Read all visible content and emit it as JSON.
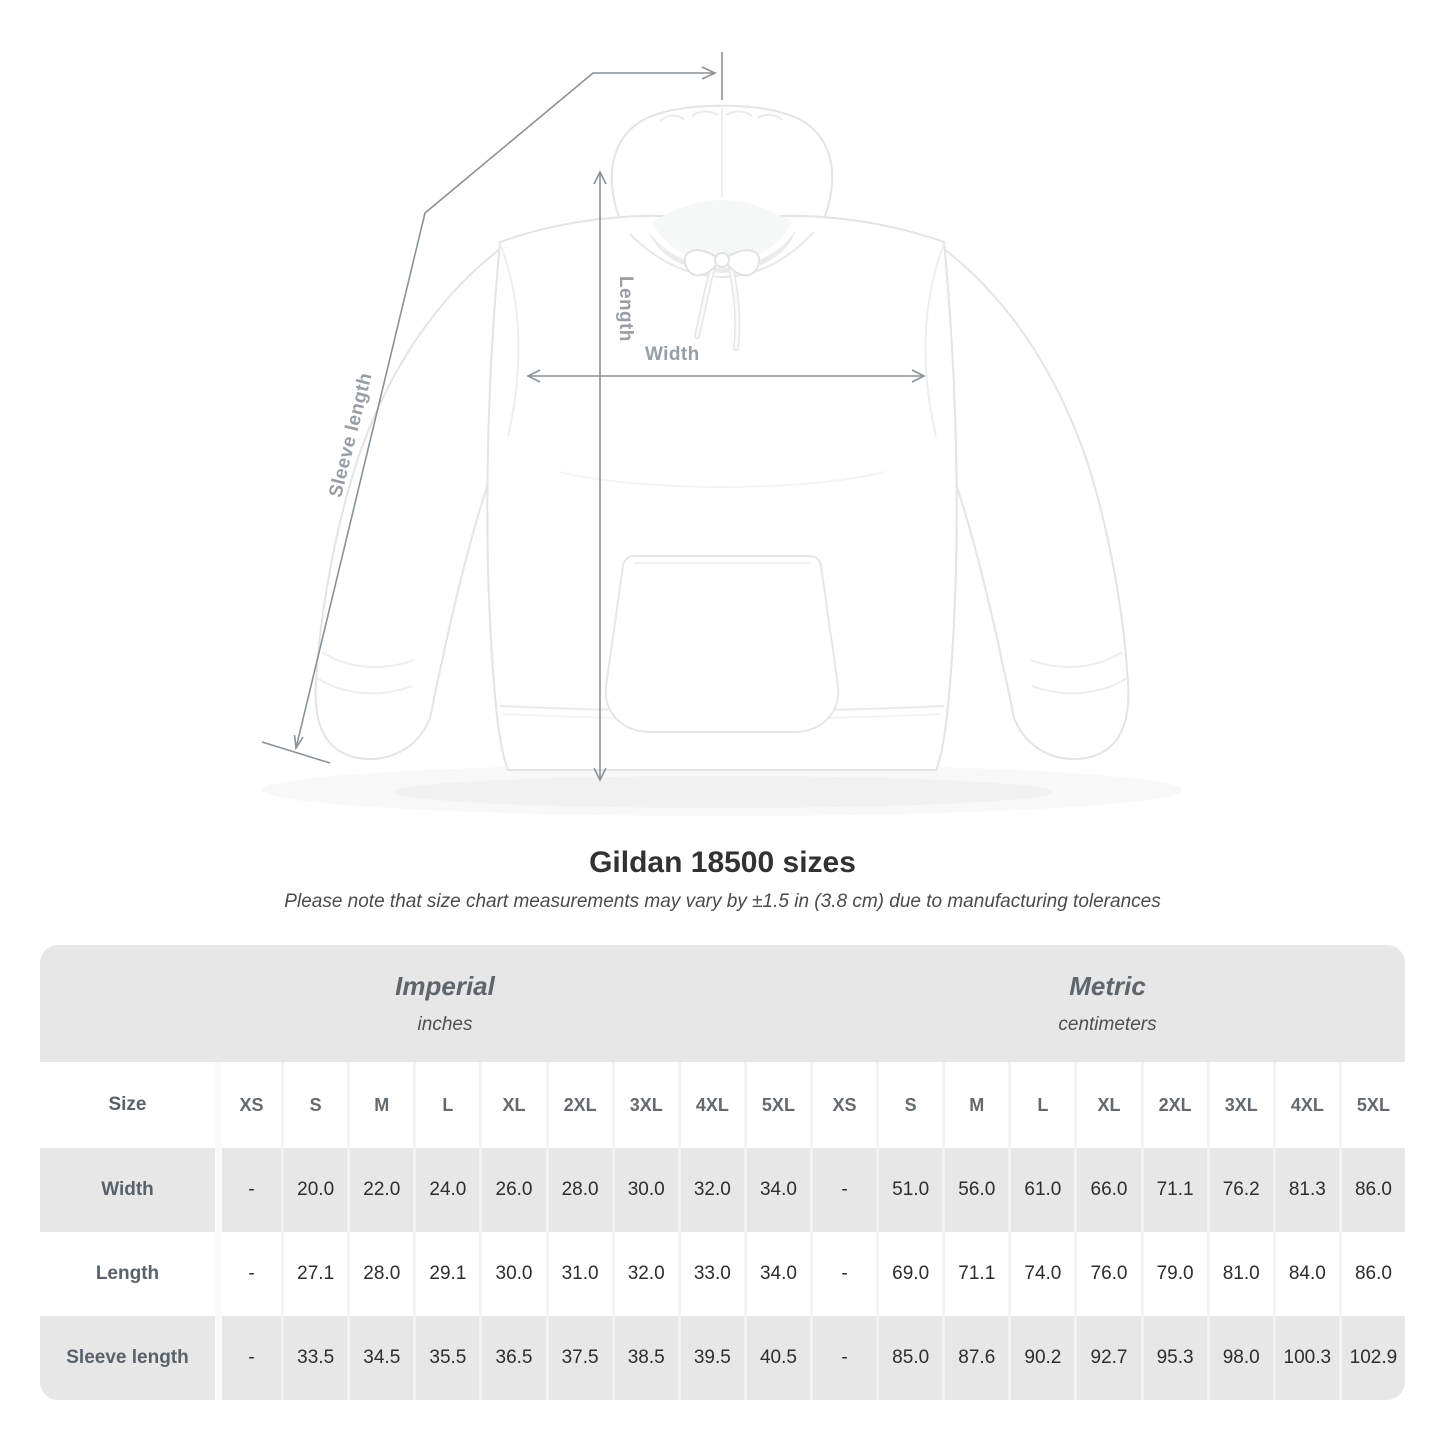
{
  "title": "Gildan 18500 sizes",
  "subtitle": "Please note that size chart measurements may vary by ±1.5 in (3.8 cm) due to manufacturing tolerances",
  "diagram": {
    "length_label": "Length",
    "width_label": "Width",
    "sleeve_label": "Sleeve length"
  },
  "colors": {
    "measure_line": "#8a9197",
    "measure_label": "#979ea5",
    "table_band": "#e7e7e7",
    "table_stripe_white": "#ffffff",
    "value_text": "#2d2d2d",
    "heading_text": "#5e656c"
  },
  "table": {
    "sections": [
      {
        "label": "Imperial",
        "sublabel": "inches"
      },
      {
        "label": "Metric",
        "sublabel": "centimeters"
      }
    ],
    "size_header": "Size",
    "sizes": [
      "XS",
      "S",
      "M",
      "L",
      "XL",
      "2XL",
      "3XL",
      "4XL",
      "5XL"
    ],
    "rows": [
      {
        "label": "Width",
        "imperial": [
          "-",
          "20.0",
          "22.0",
          "24.0",
          "26.0",
          "28.0",
          "30.0",
          "32.0",
          "34.0"
        ],
        "metric": [
          "-",
          "51.0",
          "56.0",
          "61.0",
          "66.0",
          "71.1",
          "76.2",
          "81.3",
          "86.0"
        ]
      },
      {
        "label": "Length",
        "imperial": [
          "-",
          "27.1",
          "28.0",
          "29.1",
          "30.0",
          "31.0",
          "32.0",
          "33.0",
          "34.0"
        ],
        "metric": [
          "-",
          "69.0",
          "71.1",
          "74.0",
          "76.0",
          "79.0",
          "81.0",
          "84.0",
          "86.0"
        ]
      },
      {
        "label": "Sleeve length",
        "imperial": [
          "-",
          "33.5",
          "34.5",
          "35.5",
          "36.5",
          "37.5",
          "38.5",
          "39.5",
          "40.5"
        ],
        "metric": [
          "-",
          "85.0",
          "87.6",
          "90.2",
          "92.7",
          "95.3",
          "98.0",
          "100.3",
          "102.9"
        ]
      }
    ]
  }
}
